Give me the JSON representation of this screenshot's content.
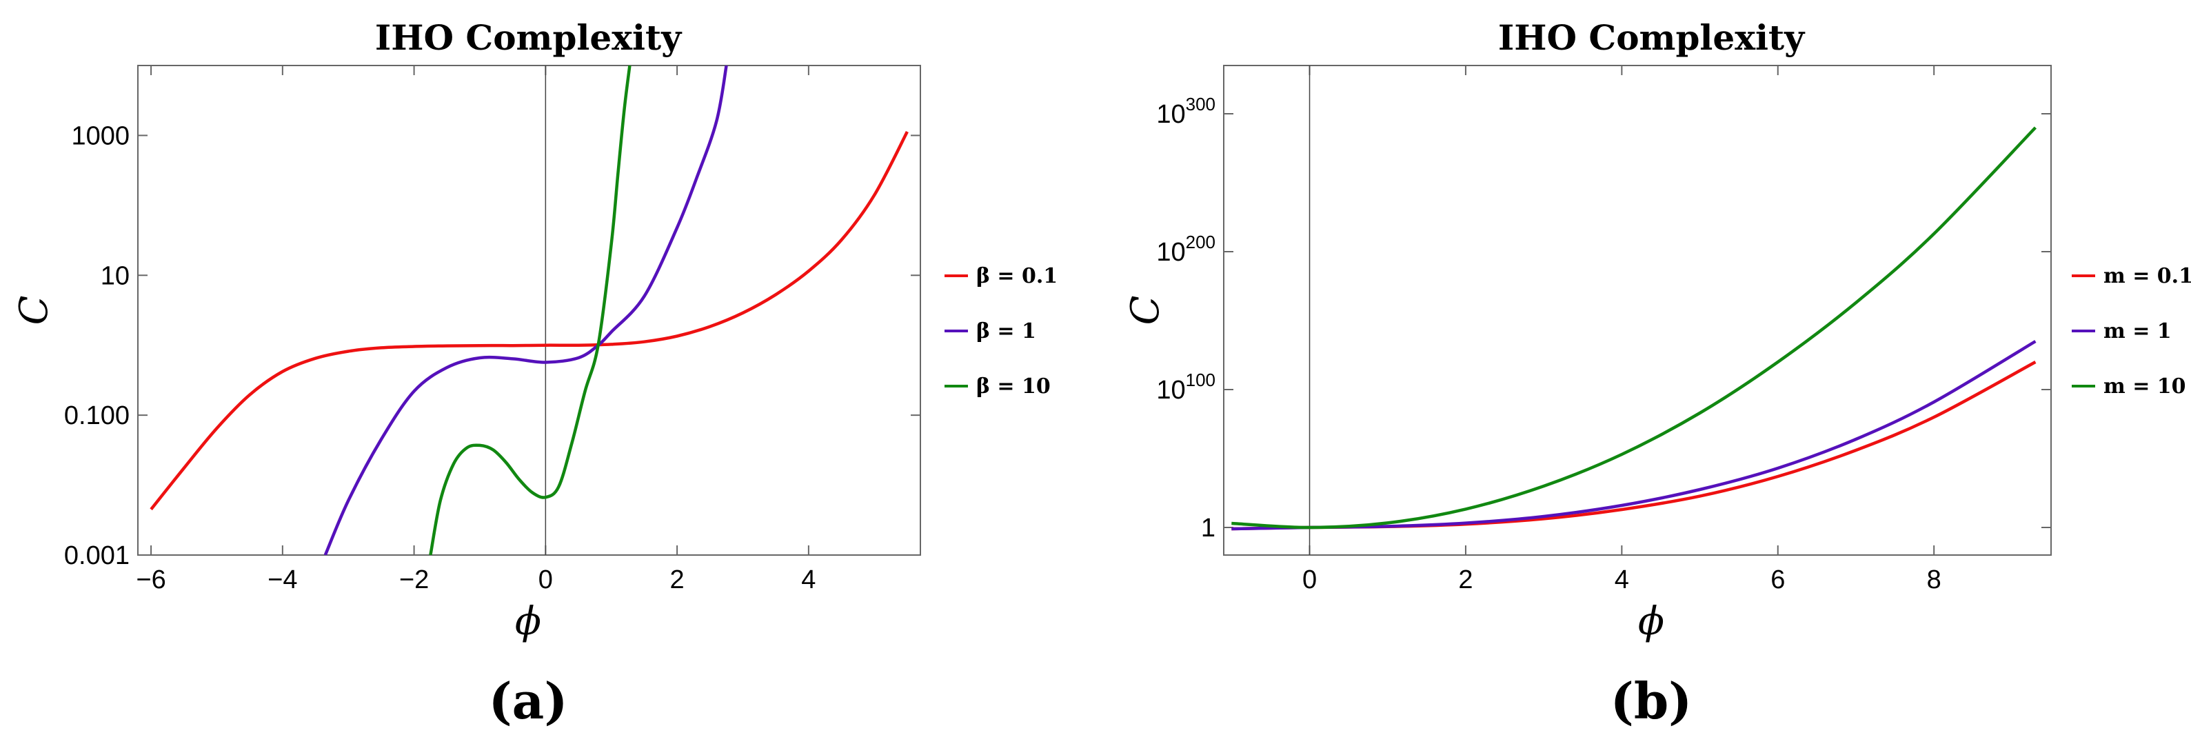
{
  "chart_data": [
    {
      "type": "line",
      "title": "IHO Complexity",
      "panel_label": "(a)",
      "xlabel": "ϕ",
      "ylabel": "C",
      "xlim": [
        -6.2,
        5.7
      ],
      "ylim": [
        0.001,
        10000
      ],
      "y_scale": "log",
      "x_ticks": [
        -6,
        -4,
        -2,
        0,
        2,
        4
      ],
      "x_tick_labels": [
        "−6",
        "−4",
        "−2",
        "0",
        "2",
        "4"
      ],
      "y_ticks": [
        0.001,
        0.1,
        10,
        1000
      ],
      "y_tick_labels": [
        "0.001",
        "0.100",
        "10",
        "1000"
      ],
      "grid": false,
      "legend_position": "right",
      "series": [
        {
          "name": "β = 0.1",
          "color": "#ee1111",
          "x": [
            -6.0,
            -5.5,
            -5.0,
            -4.5,
            -4.0,
            -3.5,
            -3.0,
            -2.5,
            -2.0,
            -1.5,
            -1.0,
            -0.5,
            0.0,
            0.5,
            1.0,
            1.5,
            2.0,
            2.5,
            3.0,
            3.5,
            4.0,
            4.5,
            5.0,
            5.5
          ],
          "y": [
            0.0045,
            0.0175,
            0.065,
            0.195,
            0.42,
            0.65,
            0.82,
            0.92,
            0.96,
            0.98,
            0.99,
            0.99,
            1.0,
            1.0,
            1.03,
            1.12,
            1.35,
            1.85,
            2.9,
            5.3,
            11.5,
            32,
            140,
            1130
          ]
        },
        {
          "name": "β = 1",
          "color": "#5511bb",
          "x": [
            -3.35,
            -3.0,
            -2.5,
            -2.0,
            -1.5,
            -1.0,
            -0.5,
            0.0,
            0.5,
            0.8,
            1.0,
            1.5,
            2.0,
            2.3,
            2.6,
            2.75
          ],
          "y": [
            0.001,
            0.006,
            0.045,
            0.22,
            0.48,
            0.66,
            0.64,
            0.57,
            0.66,
            1.0,
            1.55,
            5.0,
            48,
            250,
            1600,
            10000
          ]
        },
        {
          "name": "β = 10",
          "color": "#118811",
          "x": [
            -1.75,
            -1.6,
            -1.4,
            -1.2,
            -1.0,
            -0.8,
            -0.6,
            -0.4,
            -0.2,
            0.0,
            0.2,
            0.4,
            0.6,
            0.8,
            1.0,
            1.1,
            1.2,
            1.28
          ],
          "y": [
            0.001,
            0.006,
            0.02,
            0.034,
            0.037,
            0.032,
            0.021,
            0.012,
            0.0078,
            0.0067,
            0.0095,
            0.04,
            0.22,
            1.0,
            28,
            280,
            2500,
            10000
          ]
        }
      ]
    },
    {
      "type": "line",
      "title": "IHO Complexity",
      "panel_label": "(b)",
      "xlabel": "ϕ",
      "ylabel": "C",
      "xlim": [
        -1.1,
        9.5
      ],
      "ylim_log10": [
        -20,
        335
      ],
      "y_scale": "log",
      "x_ticks": [
        0,
        2,
        4,
        6,
        8
      ],
      "x_tick_labels": [
        "0",
        "2",
        "4",
        "6",
        "8"
      ],
      "y_ticks": [
        {
          "log10": 0,
          "base": "1",
          "exp": ""
        },
        {
          "log10": 100,
          "base": "10",
          "exp": "100"
        },
        {
          "log10": 200,
          "base": "10",
          "exp": "200"
        },
        {
          "log10": 300,
          "base": "10",
          "exp": "300"
        }
      ],
      "grid": false,
      "legend_position": "right",
      "series": [
        {
          "name": "m = 0.1",
          "color": "#ee1111",
          "x": [
            -1.0,
            0.0,
            1.0,
            2.0,
            3.0,
            4.0,
            5.0,
            6.0,
            7.0,
            8.0,
            9.3
          ],
          "log10_y": [
            -1,
            0,
            0.6,
            2.4,
            6.3,
            13,
            22.7,
            37,
            56,
            80,
            120
          ]
        },
        {
          "name": "m = 1",
          "color": "#5511bb",
          "x": [
            -1.0,
            0.0,
            1.0,
            2.0,
            3.0,
            4.0,
            5.0,
            6.0,
            7.0,
            8.0,
            9.3
          ],
          "log10_y": [
            -1,
            0,
            0.8,
            3.2,
            8,
            16,
            27.5,
            43,
            64,
            91,
            135
          ]
        },
        {
          "name": "m = 10",
          "color": "#118811",
          "x": [
            -1.0,
            0.0,
            1.0,
            2.0,
            3.0,
            4.0,
            5.0,
            6.0,
            7.0,
            8.0,
            9.3
          ],
          "log10_y": [
            3,
            0,
            3.3,
            13.3,
            30,
            53,
            83,
            120,
            163,
            213,
            290
          ]
        }
      ]
    }
  ]
}
